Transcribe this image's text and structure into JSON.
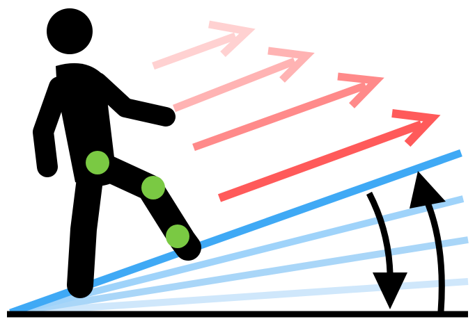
{
  "colors": {
    "figure": "#000000",
    "joint_markers": "#7ac943",
    "incline_active": "#3fa9f5",
    "incline_faded": "#9fd3fa",
    "incline_lightest": "#cfe7fb",
    "arrows": [
      "#ffd1d1",
      "#ffb3b3",
      "#ff8a8a",
      "#ff5a5a"
    ],
    "ground": "#000000",
    "angle_arrows": "#000000"
  },
  "icons": {
    "figure": "walking-person-icon",
    "joints": "joint-marker-icon",
    "direction_arrows": "arrow-right-up-icon",
    "angle_arrows": "curved-arrow-icon"
  },
  "joint_count": 3,
  "incline_lines": 4,
  "direction_arrow_count": 4
}
